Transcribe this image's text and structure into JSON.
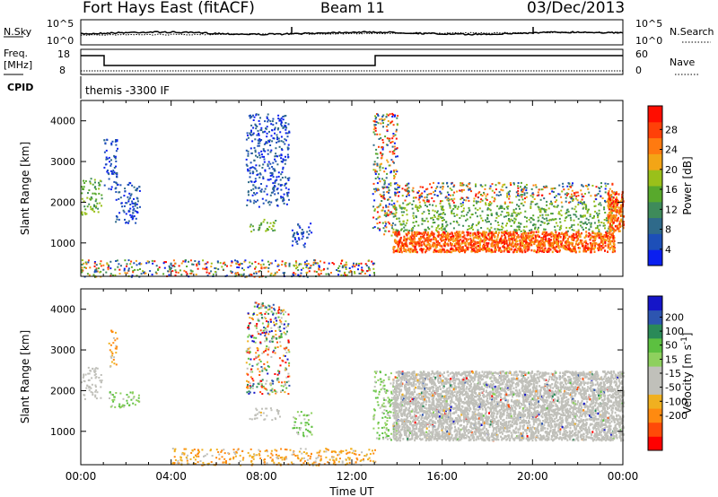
{
  "header": {
    "station": "Fort Hays East (fitACF)",
    "beam": "Beam 11",
    "date": "03/Dec/2013"
  },
  "noise_panel": {
    "left_label": "N.Sky",
    "right_label": "N.Search",
    "left_ticks": [
      "10^5",
      "10^0"
    ],
    "right_ticks": [
      "10^5",
      "10^0"
    ]
  },
  "freq_panel": {
    "left_label_1": "Freq.",
    "left_label_2": "[MHz]",
    "right_label": "Nave",
    "left_ticks": [
      "18",
      "8"
    ],
    "right_ticks": [
      "60",
      "0"
    ]
  },
  "cpid": {
    "label": "CPID",
    "value": "themis -3300 IF"
  },
  "chart_data": [
    {
      "type": "heatmap",
      "name": "power",
      "ylabel": "Slant Range [km]",
      "xlabel": "",
      "ylim": [
        180,
        4500
      ],
      "yticks": [
        "1000",
        "2000",
        "3000",
        "4000"
      ],
      "xlim": [
        0,
        24
      ],
      "colorbar": {
        "label": "Power [dB]",
        "ticks": [
          "4",
          "8",
          "12",
          "16",
          "20",
          "24",
          "28"
        ],
        "colors": [
          "#0a1ff0",
          "#1d4fb8",
          "#2f6a8a",
          "#3e8b5a",
          "#58a92c",
          "#9ac01a",
          "#f3a516",
          "#ff7a10",
          "#ff4008",
          "#ff0d00"
        ]
      },
      "regions": [
        {
          "t0": 0.0,
          "t1": 0.9,
          "r0": 1700,
          "r1": 2600,
          "level": "mid"
        },
        {
          "t0": 1.0,
          "t1": 1.6,
          "r0": 2300,
          "r1": 3600,
          "level": "low"
        },
        {
          "t0": 1.5,
          "t1": 2.6,
          "r0": 1500,
          "r1": 2500,
          "level": "low"
        },
        {
          "t0": 7.3,
          "t1": 9.2,
          "r0": 1900,
          "r1": 4200,
          "level": "low"
        },
        {
          "t0": 7.4,
          "t1": 8.6,
          "r0": 1300,
          "r1": 1600,
          "level": "mid"
        },
        {
          "t0": 9.3,
          "t1": 10.2,
          "r0": 900,
          "r1": 1500,
          "level": "low"
        },
        {
          "t0": 12.9,
          "t1": 14.0,
          "r0": 1200,
          "r1": 4200,
          "level": "mixed"
        },
        {
          "t0": 13.8,
          "t1": 23.6,
          "r0": 800,
          "r1": 1300,
          "level": "high"
        },
        {
          "t0": 13.8,
          "t1": 23.6,
          "r0": 1300,
          "r1": 2000,
          "level": "mid"
        },
        {
          "t0": 13.8,
          "t1": 23.6,
          "r0": 2000,
          "r1": 2500,
          "level": "mixed"
        },
        {
          "t0": 23.3,
          "t1": 24.0,
          "r0": 1300,
          "r1": 2300,
          "level": "high"
        },
        {
          "t0": 0.0,
          "t1": 13.0,
          "r0": 180,
          "r1": 600,
          "level": "ground"
        }
      ]
    },
    {
      "type": "heatmap",
      "name": "velocity",
      "ylabel": "Slant Range [km]",
      "xlabel": "Time UT",
      "ylim": [
        180,
        4500
      ],
      "yticks": [
        "1000",
        "2000",
        "3000",
        "4000"
      ],
      "xlim": [
        0,
        24
      ],
      "xticks": [
        "00:00",
        "04:00",
        "08:00",
        "12:00",
        "16:00",
        "20:00",
        "00:00"
      ],
      "colorbar": {
        "label": "Velocity [m s^-1]",
        "ticks": [
          "200",
          "100",
          "50",
          "15",
          "-15",
          "-50",
          "-100",
          "-200"
        ],
        "colors": [
          "#1515c8",
          "#2d55b0",
          "#2a8a58",
          "#5cc040",
          "#8ed05e",
          "#c0c0ba",
          "#c0c0ba",
          "#f0b020",
          "#ff8a10",
          "#ff4a08",
          "#ff0000"
        ]
      },
      "regions": [
        {
          "t0": 0.0,
          "t1": 0.9,
          "r0": 1800,
          "r1": 2600,
          "level": "ground"
        },
        {
          "t0": 1.2,
          "t1": 2.6,
          "r0": 1600,
          "r1": 2000,
          "level": "green"
        },
        {
          "t0": 1.2,
          "t1": 1.6,
          "r0": 2600,
          "r1": 3500,
          "level": "orange"
        },
        {
          "t0": 7.3,
          "t1": 9.2,
          "r0": 1900,
          "r1": 4200,
          "level": "mixed"
        },
        {
          "t0": 7.4,
          "t1": 8.8,
          "r0": 1300,
          "r1": 1600,
          "level": "ground"
        },
        {
          "t0": 9.3,
          "t1": 10.2,
          "r0": 900,
          "r1": 1500,
          "level": "green"
        },
        {
          "t0": 12.9,
          "t1": 14.0,
          "r0": 800,
          "r1": 2500,
          "level": "green"
        },
        {
          "t0": 13.8,
          "t1": 24.0,
          "r0": 800,
          "r1": 2500,
          "level": "ground"
        },
        {
          "t0": 4.0,
          "t1": 13.0,
          "r0": 180,
          "r1": 600,
          "level": "orange"
        }
      ]
    }
  ]
}
